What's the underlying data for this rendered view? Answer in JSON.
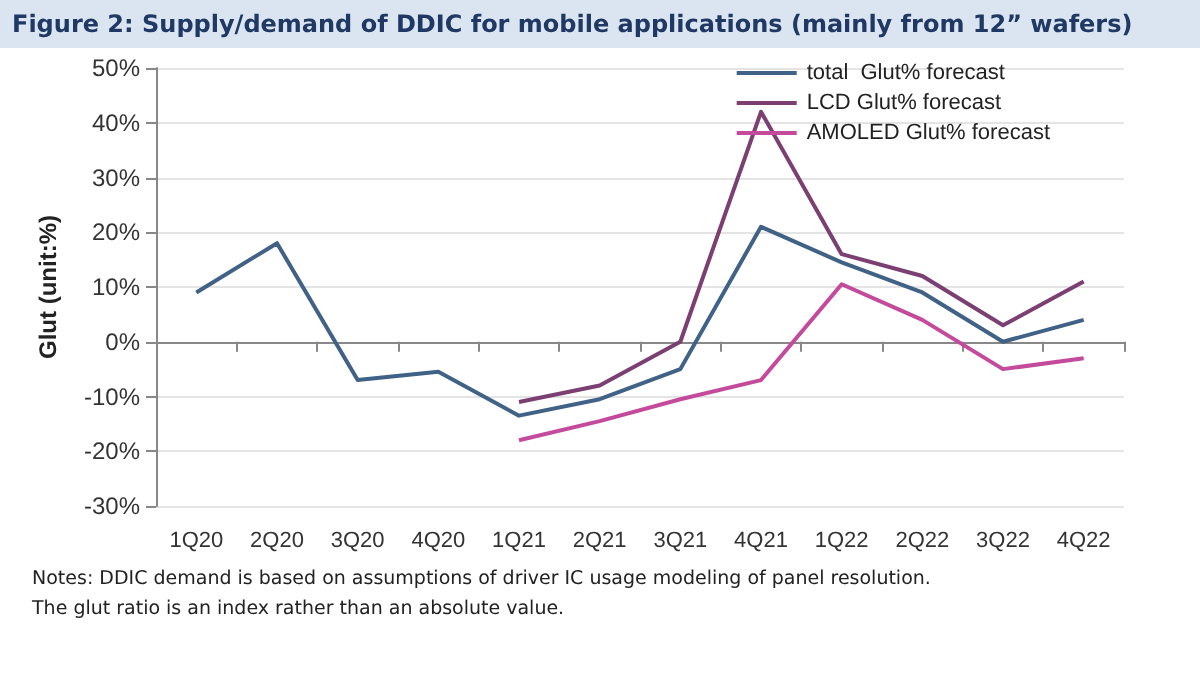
{
  "chart_data": {
    "type": "line",
    "title": "Figure 2: Supply/demand of DDIC for mobile applications (mainly from 12” wafers)",
    "ylabel": "Glut (unit:%)",
    "categories": [
      "1Q20",
      "2Q20",
      "3Q20",
      "4Q20",
      "1Q21",
      "2Q21",
      "3Q21",
      "4Q21",
      "1Q22",
      "2Q22",
      "3Q22",
      "4Q22"
    ],
    "series": [
      {
        "name": "total  Glut% forecast",
        "color": "#3f6286",
        "values": [
          9,
          18,
          -7,
          -5.5,
          -13.5,
          -10.5,
          -5,
          21,
          14.5,
          9,
          0,
          4
        ]
      },
      {
        "name": "LCD Glut% forecast",
        "color": "#7b3f72",
        "values": [
          null,
          null,
          null,
          null,
          -11,
          -8,
          0,
          42,
          16,
          12,
          3,
          11
        ]
      },
      {
        "name": "AMOLED Glut% forecast",
        "color": "#c44a9c",
        "values": [
          null,
          null,
          null,
          null,
          -18,
          -14.5,
          -10.5,
          -7,
          10.5,
          4,
          -5,
          -3
        ]
      }
    ],
    "ylim": [
      -30,
      50
    ],
    "yticks": [
      {
        "value": -30,
        "label": "-30%"
      },
      {
        "value": -20,
        "label": "-20%"
      },
      {
        "value": -10,
        "label": "-10%"
      },
      {
        "value": 0,
        "label": "0%"
      },
      {
        "value": 10,
        "label": "10%"
      },
      {
        "value": 20,
        "label": "20%"
      },
      {
        "value": 30,
        "label": "30%"
      },
      {
        "value": 40,
        "label": "40%"
      },
      {
        "value": 50,
        "label": "50%"
      }
    ],
    "grid": "y",
    "legend": "top right",
    "marker": "none",
    "line_style": "solid",
    "annotations": [
      "Notes: DDIC demand is based on assumptions of driver IC usage modeling of panel resolution.",
      "The glut ratio is an index rather than an absolute value."
    ]
  }
}
